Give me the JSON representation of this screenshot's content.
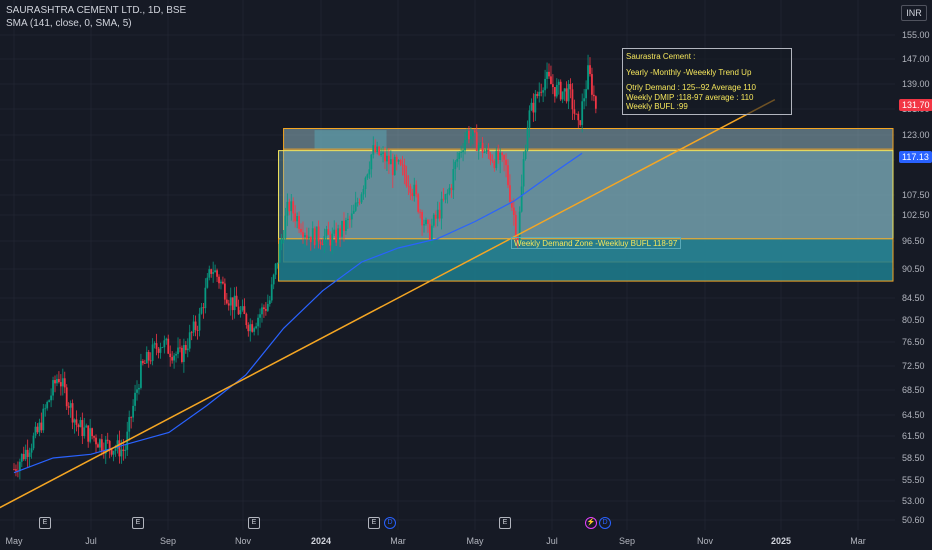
{
  "header": {
    "title": "SAURASHTRA CEMENT LTD., 1D, BSE",
    "indicator": "SMA (141, close, 0, SMA, 5)"
  },
  "currency_button": "INR",
  "price_tags": {
    "last_price": "131.70",
    "sma_value": "117.13",
    "last_color": "#f23645",
    "sma_color": "#2962ff"
  },
  "annotation": {
    "line1": "Saurastra Cement :",
    "line2": "Yearly -Monthly -Weeekly Trend Up",
    "line3": "Qtrly Demand : 125--92 Average 110",
    "line4": "Weekly DMIP :118-97 average : 110",
    "line5": "Weekly BUFL :99"
  },
  "zone_label": "Weekly Demand Zone -Weekluy BUFL 118-97",
  "event_markers": [
    {
      "type": "E",
      "label": "E"
    },
    {
      "type": "E",
      "label": "E"
    },
    {
      "type": "E",
      "label": "E"
    },
    {
      "type": "E",
      "label": "E"
    },
    {
      "type": "D",
      "label": "D"
    },
    {
      "type": "E",
      "label": "E"
    },
    {
      "type": "S",
      "label": "⚡"
    },
    {
      "type": "D",
      "label": "D"
    }
  ],
  "chart_data": {
    "type": "candlestick",
    "y_ticks": [
      "155.00",
      "147.00",
      "139.00",
      "131.00",
      "123.00",
      "115.00",
      "107.50",
      "102.50",
      "96.50",
      "90.50",
      "84.50",
      "80.50",
      "76.50",
      "72.50",
      "68.50",
      "64.50",
      "61.50",
      "58.50",
      "55.50",
      "53.00",
      "50.60"
    ],
    "x_ticks": [
      "May",
      "Jul",
      "Sep",
      "Nov",
      "2024",
      "Mar",
      "May",
      "Jul",
      "Sep",
      "Nov",
      "2025",
      "Mar"
    ],
    "x_ticks_bold": [
      "2024",
      "2025"
    ],
    "colors": {
      "up": "#089981",
      "down": "#f23645",
      "sma": "#2962ff",
      "trendline": "#f5a623",
      "zone_outer": "#8fb3bd",
      "zone_bright": "#7fc7d6",
      "zone_dark": "#1d7f8f"
    },
    "zones": [
      {
        "name": "quarterly demand zone",
        "from_date": "2023-12-01",
        "to_date": "2025-04-01",
        "high": 125,
        "low": 92
      },
      {
        "name": "weekly demand zone",
        "from_date": "2023-11-27",
        "to_date": "2025-04-01",
        "high": 118,
        "low": 97
      },
      {
        "name": "weekly bufl zone",
        "from_date": "2023-11-27",
        "to_date": "2025-04-01",
        "high": 97,
        "low": 88
      }
    ],
    "trendline": {
      "from": {
        "date": "2023-04-01",
        "price": 50.6
      },
      "to": {
        "date": "2024-12-25",
        "price": 134
      }
    },
    "sma_points": [
      {
        "date": "2023-05-01",
        "price": 56.5
      },
      {
        "date": "2023-06-01",
        "price": 58.5
      },
      {
        "date": "2023-07-01",
        "price": 59
      },
      {
        "date": "2023-08-01",
        "price": 60.5
      },
      {
        "date": "2023-09-01",
        "price": 62
      },
      {
        "date": "2023-10-01",
        "price": 66
      },
      {
        "date": "2023-11-01",
        "price": 71
      },
      {
        "date": "2023-12-01",
        "price": 79
      },
      {
        "date": "2024-01-01",
        "price": 86
      },
      {
        "date": "2024-02-01",
        "price": 92
      },
      {
        "date": "2024-03-01",
        "price": 95
      },
      {
        "date": "2024-04-01",
        "price": 97
      },
      {
        "date": "2024-05-01",
        "price": 101
      },
      {
        "date": "2024-06-01",
        "price": 106
      },
      {
        "date": "2024-07-01",
        "price": 112
      },
      {
        "date": "2024-07-25",
        "price": 117.13
      }
    ],
    "price_path": [
      {
        "date": "2023-05-01",
        "price": 57
      },
      {
        "date": "2023-05-20",
        "price": 62
      },
      {
        "date": "2023-06-05",
        "price": 71
      },
      {
        "date": "2023-06-20",
        "price": 63
      },
      {
        "date": "2023-07-10",
        "price": 60.5
      },
      {
        "date": "2023-07-28",
        "price": 59.5
      },
      {
        "date": "2023-08-10",
        "price": 72
      },
      {
        "date": "2023-08-25",
        "price": 76.5
      },
      {
        "date": "2023-09-10",
        "price": 74
      },
      {
        "date": "2023-09-25",
        "price": 80.5
      },
      {
        "date": "2023-10-05",
        "price": 91
      },
      {
        "date": "2023-10-20",
        "price": 84
      },
      {
        "date": "2023-11-05",
        "price": 79.5
      },
      {
        "date": "2023-11-20",
        "price": 84
      },
      {
        "date": "2023-12-05",
        "price": 105
      },
      {
        "date": "2023-12-20",
        "price": 98
      },
      {
        "date": "2024-01-10",
        "price": 97
      },
      {
        "date": "2024-01-25",
        "price": 102
      },
      {
        "date": "2024-02-10",
        "price": 118
      },
      {
        "date": "2024-02-25",
        "price": 114
      },
      {
        "date": "2024-03-10",
        "price": 111
      },
      {
        "date": "2024-03-25",
        "price": 98
      },
      {
        "date": "2024-04-10",
        "price": 108
      },
      {
        "date": "2024-04-25",
        "price": 124
      },
      {
        "date": "2024-05-10",
        "price": 117
      },
      {
        "date": "2024-05-25",
        "price": 114
      },
      {
        "date": "2024-06-04",
        "price": 97
      },
      {
        "date": "2024-06-12",
        "price": 128
      },
      {
        "date": "2024-06-25",
        "price": 141
      },
      {
        "date": "2024-07-05",
        "price": 137
      },
      {
        "date": "2024-07-15",
        "price": 136
      },
      {
        "date": "2024-07-22",
        "price": 125
      },
      {
        "date": "2024-07-30",
        "price": 143
      },
      {
        "date": "2024-08-05",
        "price": 131.7
      }
    ]
  }
}
